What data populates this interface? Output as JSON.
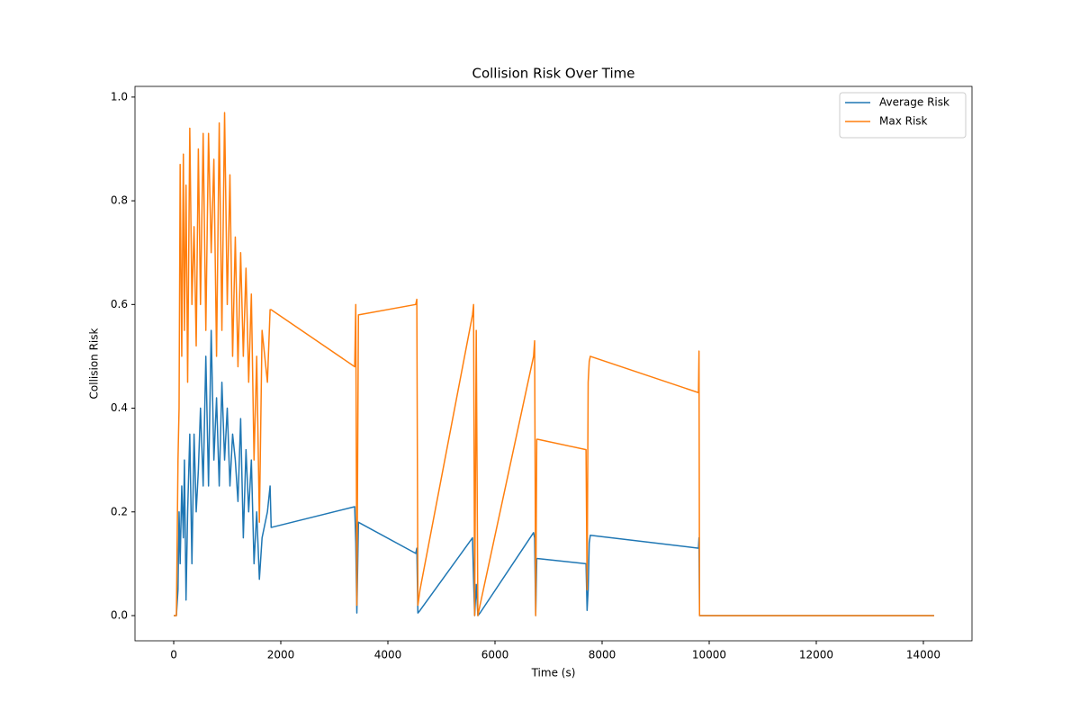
{
  "chart_data": {
    "type": "line",
    "title": "Collision Risk Over Time",
    "x_label": "Time (s)",
    "y_label": "Collision Risk",
    "x": [
      0,
      50,
      80,
      100,
      120,
      150,
      180,
      200,
      230,
      260,
      300,
      340,
      380,
      420,
      460,
      500,
      550,
      600,
      650,
      700,
      750,
      800,
      850,
      900,
      950,
      1000,
      1050,
      1100,
      1150,
      1200,
      1250,
      1300,
      1350,
      1400,
      1450,
      1500,
      1550,
      1600,
      1650,
      1750,
      1800,
      1820,
      3380,
      3400,
      3420,
      3450,
      4520,
      4540,
      4560,
      4600,
      5580,
      5600,
      5620,
      5650,
      5680,
      5720,
      6720,
      6740,
      6760,
      6780,
      6800,
      7700,
      7720,
      7740,
      7760,
      7780,
      9800,
      9810,
      9820,
      9840,
      14200
    ],
    "series": [
      {
        "name": "Average Risk",
        "color": "#1f77b4",
        "values": [
          0,
          0,
          0.05,
          0.2,
          0.1,
          0.25,
          0.15,
          0.3,
          0.03,
          0.2,
          0.35,
          0.1,
          0.35,
          0.2,
          0.28,
          0.4,
          0.25,
          0.5,
          0.25,
          0.55,
          0.3,
          0.42,
          0.25,
          0.45,
          0.3,
          0.4,
          0.25,
          0.35,
          0.3,
          0.22,
          0.38,
          0.15,
          0.32,
          0.2,
          0.3,
          0.1,
          0.2,
          0.07,
          0.15,
          0.2,
          0.25,
          0.17,
          0.21,
          0.14,
          0.005,
          0.18,
          0.12,
          0.13,
          0.005,
          0.01,
          0.15,
          0.07,
          0,
          0.06,
          0,
          0.005,
          0.16,
          0.15,
          0,
          0.11,
          0.11,
          0.1,
          0.01,
          0.05,
          0.14,
          0.155,
          0.13,
          0.15,
          0,
          0,
          0
        ]
      },
      {
        "name": "Max Risk",
        "color": "#ff7f0e",
        "values": [
          0,
          0,
          0.3,
          0.4,
          0.87,
          0.5,
          0.89,
          0.55,
          0.83,
          0.45,
          0.94,
          0.6,
          0.75,
          0.52,
          0.9,
          0.6,
          0.93,
          0.55,
          0.93,
          0.7,
          0.88,
          0.5,
          0.95,
          0.55,
          0.97,
          0.6,
          0.85,
          0.5,
          0.73,
          0.48,
          0.7,
          0.5,
          0.67,
          0.45,
          0.62,
          0.3,
          0.5,
          0.18,
          0.55,
          0.45,
          0.59,
          0.59,
          0.48,
          0.6,
          0.02,
          0.58,
          0.6,
          0.61,
          0.02,
          0.05,
          0.58,
          0.6,
          0,
          0.55,
          0,
          0.02,
          0.5,
          0.53,
          0,
          0.34,
          0.34,
          0.32,
          0.05,
          0.45,
          0.49,
          0.5,
          0.43,
          0.51,
          0,
          0,
          0
        ]
      }
    ],
    "xlim": [
      -723,
      14908
    ],
    "ylim": [
      -0.0486,
      1.0206
    ],
    "xticks": [
      0,
      2000,
      4000,
      6000,
      8000,
      10000,
      12000,
      14000
    ],
    "yticks": [
      {
        "value": 0,
        "label": "0.0"
      },
      0.2,
      0.4,
      0.6,
      0.8,
      {
        "value": 1,
        "label": "1.0"
      }
    ],
    "legend": "upper right"
  }
}
